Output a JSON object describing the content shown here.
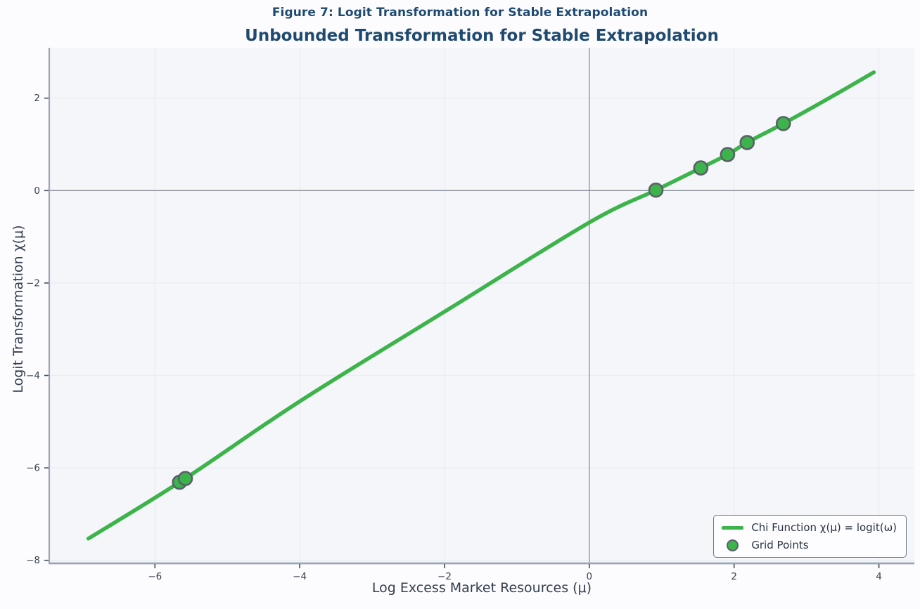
{
  "chart_data": {
    "type": "line",
    "suptitle": "Figure 7: Logit Transformation for Stable Extrapolation",
    "title": "Unbounded Transformation for Stable Extrapolation",
    "xlabel": "Log Excess Market Resources (μ)",
    "ylabel": "Logit Transformation χ(μ)",
    "xlim": [
      -7.46,
      4.49
    ],
    "ylim": [
      -8.05,
      3.09
    ],
    "xticks": [
      -6,
      -4,
      -2,
      0,
      2,
      4
    ],
    "xtick_labels": [
      "−6",
      "−4",
      "−2",
      "0",
      "2",
      "4"
    ],
    "yticks": [
      2,
      0,
      -2,
      -4,
      -6,
      -8
    ],
    "ytick_labels": [
      "2",
      "0",
      "−2",
      "−4",
      "−6",
      "−8"
    ],
    "grid": true,
    "reflines": {
      "x": 0,
      "y": 0
    },
    "legend_position": "lower right",
    "series": [
      {
        "name": "Chi Function χ(μ) = logit(ω)",
        "type": "line",
        "x": [
          -6.92,
          -5.61,
          -4.0,
          -2.0,
          0.0,
          0.92,
          1.54,
          1.91,
          2.18,
          2.68,
          3.3,
          3.93
        ],
        "y": [
          -7.53,
          -6.26,
          -4.56,
          -2.62,
          -0.69,
          0.01,
          0.49,
          0.78,
          1.04,
          1.45,
          1.99,
          2.56
        ]
      },
      {
        "name": "Grid Points",
        "type": "scatter",
        "x": [
          -5.66,
          -5.58,
          0.92,
          1.54,
          1.91,
          2.18,
          2.68
        ],
        "y": [
          -6.31,
          -6.23,
          0.01,
          0.49,
          0.78,
          1.04,
          1.45
        ]
      }
    ],
    "colors": {
      "line": "#3cb44b",
      "marker_fill": "#3cb44b",
      "marker_edge": "#5a6068",
      "grid": "#e9ecf2",
      "axes_bg": "#f5f6fa",
      "fig_bg": "#fcfcfe",
      "spine": "#9ca5b4",
      "refline": "#8a8f99",
      "tick": "#444c59",
      "tick_label": "#39414f",
      "title": "#1f4a70",
      "axis_label": "#333d4f"
    }
  }
}
